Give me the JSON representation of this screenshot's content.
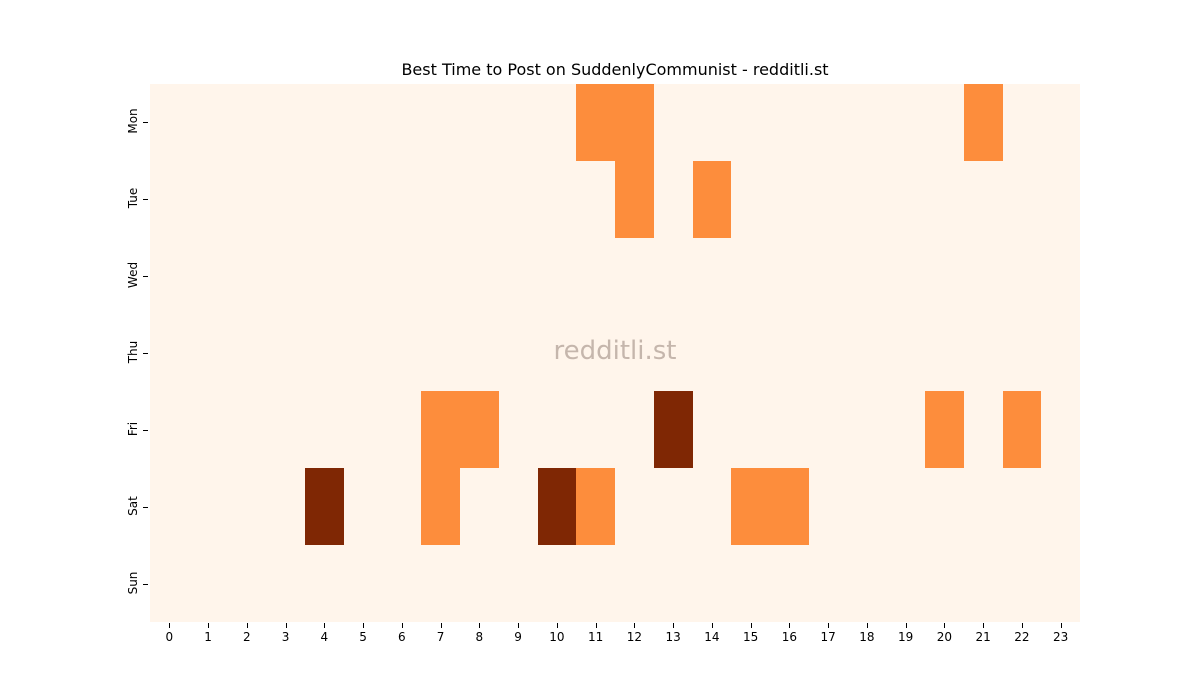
{
  "chart_data": {
    "type": "heatmap",
    "title": "Best Time to Post on SuddenlyCommunist - redditli.st",
    "watermark": "redditli.st",
    "xlabel": "",
    "ylabel": "",
    "x": [
      "0",
      "1",
      "2",
      "3",
      "4",
      "5",
      "6",
      "7",
      "8",
      "9",
      "10",
      "11",
      "12",
      "13",
      "14",
      "15",
      "16",
      "17",
      "18",
      "19",
      "20",
      "21",
      "22",
      "23"
    ],
    "y": [
      "Mon",
      "Tue",
      "Wed",
      "Thu",
      "Fri",
      "Sat",
      "Sun"
    ],
    "colorscale": {
      "0": "#fff5eb",
      "1": "#fd8d3c",
      "2": "#7f2704"
    },
    "values": [
      [
        0,
        0,
        0,
        0,
        0,
        0,
        0,
        0,
        0,
        0,
        0,
        1,
        1,
        0,
        0,
        0,
        0,
        0,
        0,
        0,
        0,
        1,
        0,
        0
      ],
      [
        0,
        0,
        0,
        0,
        0,
        0,
        0,
        0,
        0,
        0,
        0,
        0,
        1,
        0,
        1,
        0,
        0,
        0,
        0,
        0,
        0,
        0,
        0,
        0
      ],
      [
        0,
        0,
        0,
        0,
        0,
        0,
        0,
        0,
        0,
        0,
        0,
        0,
        0,
        0,
        0,
        0,
        0,
        0,
        0,
        0,
        0,
        0,
        0,
        0
      ],
      [
        0,
        0,
        0,
        0,
        0,
        0,
        0,
        0,
        0,
        0,
        0,
        0,
        0,
        0,
        0,
        0,
        0,
        0,
        0,
        0,
        0,
        0,
        0,
        0
      ],
      [
        0,
        0,
        0,
        0,
        0,
        0,
        0,
        1,
        1,
        0,
        0,
        0,
        0,
        2,
        0,
        0,
        0,
        0,
        0,
        0,
        1,
        0,
        1,
        0
      ],
      [
        0,
        0,
        0,
        0,
        2,
        0,
        0,
        1,
        0,
        0,
        2,
        1,
        0,
        0,
        0,
        1,
        1,
        0,
        0,
        0,
        0,
        0,
        0,
        0
      ],
      [
        0,
        0,
        0,
        0,
        0,
        0,
        0,
        0,
        0,
        0,
        0,
        0,
        0,
        0,
        0,
        0,
        0,
        0,
        0,
        0,
        0,
        0,
        0,
        0
      ]
    ],
    "grid": false,
    "legend": "none"
  }
}
